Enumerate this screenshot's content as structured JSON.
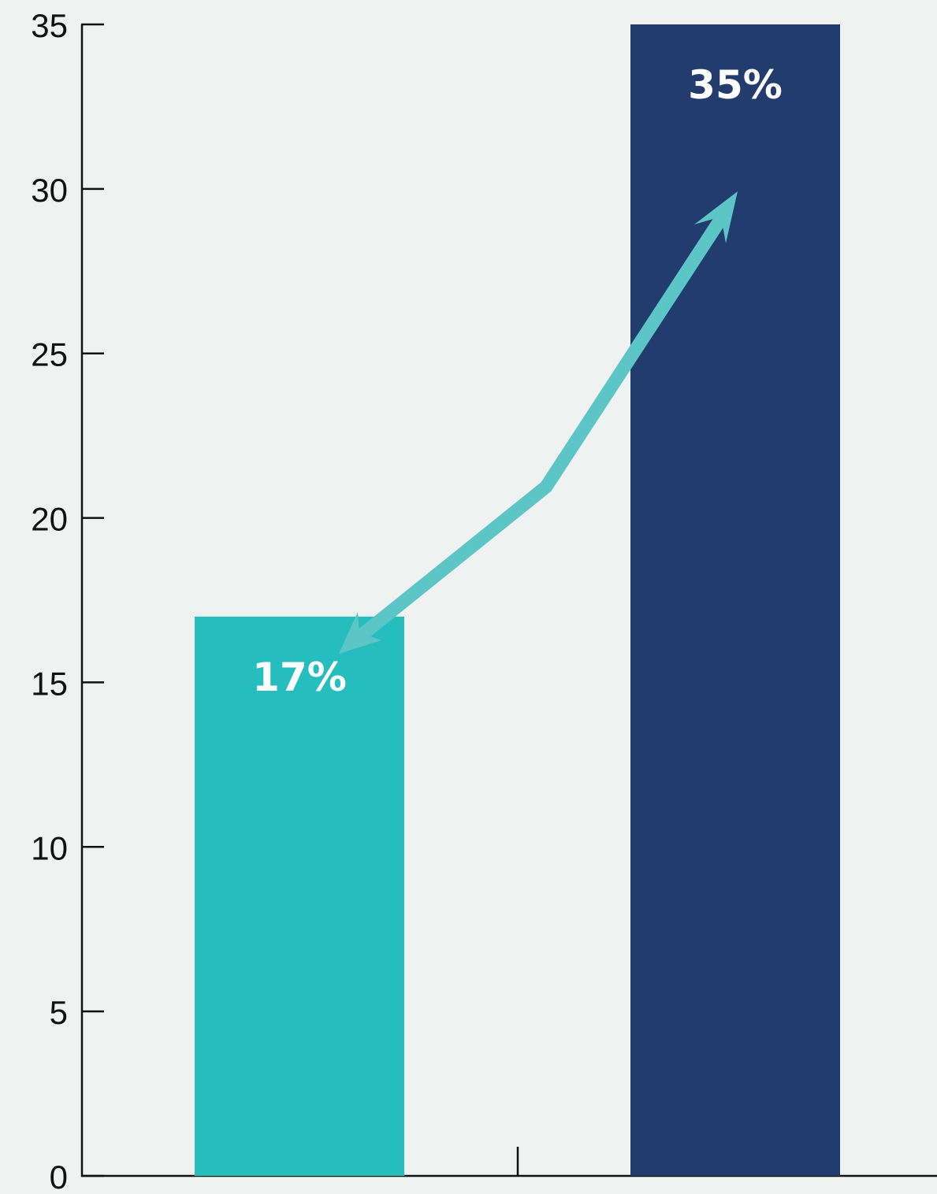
{
  "chart_data": {
    "type": "bar",
    "categories": [
      "",
      ""
    ],
    "values": [
      17,
      35
    ],
    "data_labels": [
      "17%",
      "35%"
    ],
    "bar_colors": [
      "#26bdbe",
      "#223c6e"
    ],
    "ylim": [
      0,
      35
    ],
    "yticks": [
      0,
      5,
      10,
      15,
      20,
      25,
      30,
      35
    ],
    "ytick_labels": [
      "0",
      "5",
      "10",
      "15",
      "20",
      "25",
      "30",
      "35"
    ],
    "title": "",
    "xlabel": "",
    "ylabel": "",
    "grid": false,
    "annotation": {
      "type": "double-headed-arrow",
      "color": "#5cc6c7",
      "connects": [
        "17%",
        "35%"
      ]
    },
    "background": "#f0f2f1",
    "axis_color": "#111111"
  }
}
